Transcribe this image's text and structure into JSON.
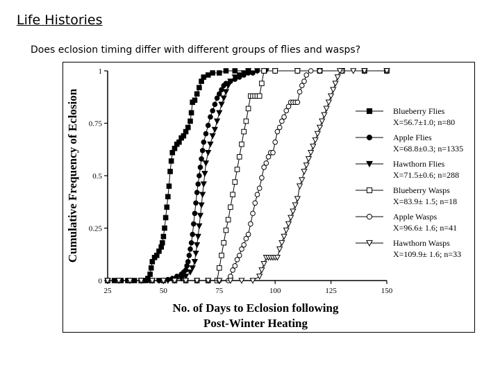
{
  "slide": {
    "title": "Life Histories",
    "subtitle": "Does eclosion timing differ with different groups of flies and wasps?"
  },
  "chart_data": {
    "type": "line",
    "title": "",
    "xlabel": [
      "No. of Days to Eclosion following",
      "Post-Winter Heating"
    ],
    "ylabel": "Cumulative Frequency of Eclosion",
    "xlim": [
      25,
      150
    ],
    "ylim": [
      0,
      1
    ],
    "xticks": [
      "25",
      "50",
      "75",
      "100",
      "125",
      "150"
    ],
    "yticks": [
      "0",
      "0.25",
      "0.5",
      "0.75",
      "1"
    ],
    "grid": false,
    "legend": "right",
    "series": [
      {
        "name": "Blueberry Flies",
        "stats": "X=56.7±1.0; n=80",
        "marker": "square-filled",
        "points": [
          [
            25,
            0
          ],
          [
            28,
            0
          ],
          [
            31,
            0
          ],
          [
            34,
            0
          ],
          [
            37,
            0
          ],
          [
            40,
            0
          ],
          [
            42,
            0
          ],
          [
            43,
            0.01
          ],
          [
            44,
            0.03
          ],
          [
            44.5,
            0.06
          ],
          [
            45,
            0.09
          ],
          [
            46,
            0.11
          ],
          [
            47,
            0.12
          ],
          [
            48,
            0.14
          ],
          [
            49,
            0.16
          ],
          [
            49.5,
            0.18
          ],
          [
            50,
            0.21
          ],
          [
            50.5,
            0.25
          ],
          [
            51,
            0.3
          ],
          [
            51.5,
            0.35
          ],
          [
            52,
            0.4
          ],
          [
            52.5,
            0.45
          ],
          [
            53,
            0.52
          ],
          [
            53.5,
            0.57
          ],
          [
            54,
            0.61
          ],
          [
            55,
            0.63
          ],
          [
            56,
            0.65
          ],
          [
            57,
            0.66
          ],
          [
            58,
            0.68
          ],
          [
            59,
            0.69
          ],
          [
            60,
            0.71
          ],
          [
            61,
            0.73
          ],
          [
            62,
            0.76
          ],
          [
            62.5,
            0.8
          ],
          [
            63,
            0.85
          ],
          [
            64,
            0.86
          ],
          [
            65,
            0.89
          ],
          [
            66,
            0.92
          ],
          [
            67,
            0.95
          ],
          [
            68,
            0.97
          ],
          [
            70,
            0.98
          ],
          [
            72,
            0.99
          ],
          [
            75,
            0.99
          ],
          [
            78,
            1
          ],
          [
            82,
            1
          ],
          [
            88,
            1
          ],
          [
            95,
            1
          ],
          [
            100,
            1
          ],
          [
            110,
            1
          ],
          [
            120,
            1
          ],
          [
            130,
            1
          ],
          [
            140,
            1
          ],
          [
            150,
            1
          ]
        ]
      },
      {
        "name": "Apple Flies",
        "stats": "X=68.8±0.3; n=1335",
        "marker": "circle-filled",
        "points": [
          [
            25,
            0
          ],
          [
            30,
            0
          ],
          [
            35,
            0
          ],
          [
            40,
            0
          ],
          [
            44,
            0
          ],
          [
            48,
            0
          ],
          [
            50,
            0
          ],
          [
            52,
            0.005
          ],
          [
            54,
            0.01
          ],
          [
            56,
            0.02
          ],
          [
            58,
            0.03
          ],
          [
            59,
            0.04
          ],
          [
            60,
            0.05
          ],
          [
            60.5,
            0.07
          ],
          [
            61,
            0.09
          ],
          [
            61.5,
            0.12
          ],
          [
            62,
            0.15
          ],
          [
            62.5,
            0.18
          ],
          [
            63,
            0.22
          ],
          [
            63.5,
            0.27
          ],
          [
            64,
            0.32
          ],
          [
            64.5,
            0.37
          ],
          [
            65,
            0.42
          ],
          [
            65.5,
            0.46
          ],
          [
            66,
            0.5
          ],
          [
            66.5,
            0.54
          ],
          [
            67,
            0.58
          ],
          [
            67.5,
            0.62
          ],
          [
            68,
            0.66
          ],
          [
            69,
            0.7
          ],
          [
            70,
            0.74
          ],
          [
            71,
            0.78
          ],
          [
            72,
            0.81
          ],
          [
            73,
            0.84
          ],
          [
            74,
            0.87
          ],
          [
            75,
            0.89
          ],
          [
            76,
            0.91
          ],
          [
            77,
            0.93
          ],
          [
            78,
            0.94
          ],
          [
            80,
            0.95
          ],
          [
            82,
            0.96
          ],
          [
            84,
            0.97
          ],
          [
            86,
            0.98
          ],
          [
            88,
            0.99
          ],
          [
            90,
            0.99
          ],
          [
            92,
            1
          ],
          [
            95,
            1
          ],
          [
            100,
            1
          ],
          [
            110,
            1
          ],
          [
            120,
            1
          ],
          [
            130,
            1
          ],
          [
            140,
            1
          ],
          [
            150,
            1
          ]
        ]
      },
      {
        "name": "Hawthorn Flies",
        "stats": "X=71.5±0.6; n=288",
        "marker": "triangle-down-filled",
        "points": [
          [
            25,
            0
          ],
          [
            30,
            0
          ],
          [
            35,
            0
          ],
          [
            40,
            0
          ],
          [
            44,
            0
          ],
          [
            48,
            0
          ],
          [
            52,
            0
          ],
          [
            55,
            0.005
          ],
          [
            58,
            0.01
          ],
          [
            60,
            0.02
          ],
          [
            62,
            0.04
          ],
          [
            63,
            0.06
          ],
          [
            64,
            0.09
          ],
          [
            64.5,
            0.13
          ],
          [
            65,
            0.17
          ],
          [
            65.5,
            0.21
          ],
          [
            66,
            0.26
          ],
          [
            66.5,
            0.31
          ],
          [
            67,
            0.36
          ],
          [
            67.5,
            0.41
          ],
          [
            68,
            0.46
          ],
          [
            68.5,
            0.51
          ],
          [
            69,
            0.56
          ],
          [
            70,
            0.61
          ],
          [
            71,
            0.65
          ],
          [
            72,
            0.69
          ],
          [
            73,
            0.72
          ],
          [
            74,
            0.76
          ],
          [
            75,
            0.8
          ],
          [
            76,
            0.84
          ],
          [
            77,
            0.87
          ],
          [
            78,
            0.9
          ],
          [
            79,
            0.93
          ],
          [
            80,
            0.95
          ],
          [
            82,
            0.97
          ],
          [
            84,
            0.98
          ],
          [
            86,
            0.99
          ],
          [
            88,
            1
          ],
          [
            92,
            1
          ],
          [
            96,
            1
          ],
          [
            100,
            1
          ],
          [
            110,
            1
          ],
          [
            120,
            1
          ],
          [
            130,
            1
          ],
          [
            140,
            1
          ],
          [
            150,
            1
          ]
        ]
      },
      {
        "name": "Blueberry Wasps",
        "stats": "X=83.9± 1.5; n=18",
        "marker": "square-open",
        "points": [
          [
            25,
            0
          ],
          [
            30,
            0
          ],
          [
            35,
            0
          ],
          [
            40,
            0
          ],
          [
            45,
            0
          ],
          [
            50,
            0
          ],
          [
            55,
            0
          ],
          [
            60,
            0
          ],
          [
            65,
            0
          ],
          [
            70,
            0
          ],
          [
            74,
            0
          ],
          [
            75,
            0.06
          ],
          [
            76,
            0.12
          ],
          [
            77,
            0.18
          ],
          [
            78,
            0.24
          ],
          [
            79,
            0.29
          ],
          [
            80,
            0.35
          ],
          [
            81,
            0.41
          ],
          [
            82,
            0.47
          ],
          [
            83,
            0.53
          ],
          [
            84,
            0.59
          ],
          [
            85,
            0.65
          ],
          [
            86,
            0.71
          ],
          [
            87,
            0.76
          ],
          [
            88,
            0.82
          ],
          [
            89,
            0.88
          ],
          [
            90,
            0.88
          ],
          [
            91,
            0.88
          ],
          [
            92,
            0.88
          ],
          [
            93,
            0.88
          ],
          [
            94,
            0.94
          ],
          [
            95,
            1
          ],
          [
            100,
            1
          ],
          [
            110,
            1
          ],
          [
            120,
            1
          ],
          [
            130,
            1
          ],
          [
            140,
            1
          ],
          [
            150,
            1
          ]
        ]
      },
      {
        "name": "Apple Wasps",
        "stats": "X=96.6± 1.6; n=41",
        "marker": "circle-open",
        "points": [
          [
            25,
            0
          ],
          [
            30,
            0
          ],
          [
            35,
            0
          ],
          [
            40,
            0
          ],
          [
            45,
            0
          ],
          [
            50,
            0
          ],
          [
            55,
            0
          ],
          [
            60,
            0
          ],
          [
            65,
            0
          ],
          [
            70,
            0
          ],
          [
            75,
            0
          ],
          [
            79,
            0
          ],
          [
            80,
            0.02
          ],
          [
            81,
            0.05
          ],
          [
            82,
            0.07
          ],
          [
            83,
            0.1
          ],
          [
            84,
            0.12
          ],
          [
            85,
            0.15
          ],
          [
            86,
            0.17
          ],
          [
            87,
            0.2
          ],
          [
            88,
            0.22
          ],
          [
            89,
            0.27
          ],
          [
            90,
            0.32
          ],
          [
            91,
            0.37
          ],
          [
            92,
            0.41
          ],
          [
            93,
            0.44
          ],
          [
            94,
            0.49
          ],
          [
            95,
            0.54
          ],
          [
            96,
            0.56
          ],
          [
            97,
            0.59
          ],
          [
            98,
            0.61
          ],
          [
            99,
            0.61
          ],
          [
            100,
            0.66
          ],
          [
            101,
            0.71
          ],
          [
            102,
            0.73
          ],
          [
            103,
            0.76
          ],
          [
            104,
            0.78
          ],
          [
            105,
            0.81
          ],
          [
            106,
            0.83
          ],
          [
            107,
            0.85
          ],
          [
            108,
            0.85
          ],
          [
            109,
            0.85
          ],
          [
            110,
            0.85
          ],
          [
            111,
            0.9
          ],
          [
            112,
            0.93
          ],
          [
            113,
            0.95
          ],
          [
            114,
            0.98
          ],
          [
            116,
            1
          ],
          [
            120,
            1
          ],
          [
            130,
            1
          ],
          [
            140,
            1
          ],
          [
            150,
            1
          ]
        ]
      },
      {
        "name": "Hawthorn Wasps",
        "stats": "X=109.9± 1.6; n=33",
        "marker": "triangle-down-open",
        "points": [
          [
            25,
            0
          ],
          [
            30,
            0
          ],
          [
            35,
            0
          ],
          [
            40,
            0
          ],
          [
            45,
            0
          ],
          [
            50,
            0
          ],
          [
            55,
            0
          ],
          [
            60,
            0
          ],
          [
            65,
            0
          ],
          [
            70,
            0
          ],
          [
            75,
            0
          ],
          [
            80,
            0
          ],
          [
            85,
            0
          ],
          [
            90,
            0
          ],
          [
            93,
            0.02
          ],
          [
            94,
            0.05
          ],
          [
            95,
            0.08
          ],
          [
            96,
            0.11
          ],
          [
            97,
            0.11
          ],
          [
            98,
            0.11
          ],
          [
            99,
            0.11
          ],
          [
            100,
            0.11
          ],
          [
            101,
            0.11
          ],
          [
            102,
            0.15
          ],
          [
            103,
            0.18
          ],
          [
            104,
            0.21
          ],
          [
            105,
            0.24
          ],
          [
            106,
            0.27
          ],
          [
            107,
            0.3
          ],
          [
            108,
            0.33
          ],
          [
            109,
            0.36
          ],
          [
            110,
            0.39
          ],
          [
            111,
            0.45
          ],
          [
            112,
            0.48
          ],
          [
            113,
            0.52
          ],
          [
            114,
            0.55
          ],
          [
            115,
            0.58
          ],
          [
            116,
            0.61
          ],
          [
            117,
            0.64
          ],
          [
            118,
            0.67
          ],
          [
            119,
            0.7
          ],
          [
            120,
            0.73
          ],
          [
            121,
            0.76
          ],
          [
            122,
            0.79
          ],
          [
            123,
            0.82
          ],
          [
            124,
            0.85
          ],
          [
            125,
            0.88
          ],
          [
            126,
            0.91
          ],
          [
            127,
            0.94
          ],
          [
            128,
            0.97
          ],
          [
            129,
            1
          ],
          [
            135,
            1
          ],
          [
            140,
            1
          ],
          [
            150,
            1
          ]
        ]
      }
    ]
  }
}
